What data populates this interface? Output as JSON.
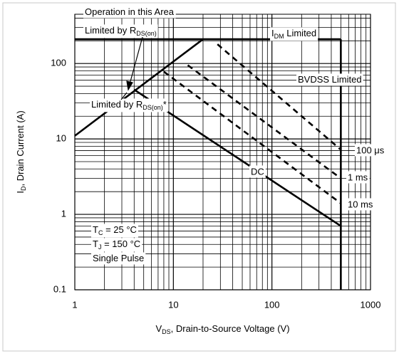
{
  "chart_data": {
    "type": "line",
    "xscale": "log",
    "yscale": "log",
    "xlim": [
      1,
      1000
    ],
    "ylim": [
      0.1,
      450
    ],
    "xticks": [
      1,
      10,
      100,
      1000
    ],
    "yticks": [
      0.1,
      1,
      10,
      100
    ],
    "grid": true,
    "minor_grid": true,
    "xlabel": [
      "V",
      "DS",
      ", Drain-to-Source Voltage (V)"
    ],
    "ylabel": [
      "I",
      "D",
      ", Drain Current (A)"
    ],
    "color": "#000000",
    "series": [
      {
        "style": "solid",
        "x": [
          1,
          20
        ],
        "values": [
          11,
          210
        ]
      },
      {
        "style": "solid",
        "x": [
          1,
          500
        ],
        "values": [
          210,
          210
        ]
      },
      {
        "style": "solid",
        "x": [
          500,
          500
        ],
        "values": [
          210,
          0.1
        ]
      },
      {
        "name": "DC",
        "style": "solid",
        "x": [
          4,
          500
        ],
        "values": [
          45,
          0.7
        ]
      },
      {
        "name": "10 ms",
        "style": "dashed",
        "x": [
          8,
          500
        ],
        "values": [
          78,
          1.4
        ]
      },
      {
        "name": "1 ms",
        "style": "dashed",
        "x": [
          14,
          500
        ],
        "values": [
          95,
          3
        ]
      },
      {
        "name": "100 μs",
        "style": "dashed",
        "x": [
          28,
          500
        ],
        "values": [
          180,
          7.2
        ]
      }
    ],
    "annotations": [
      [
        "Operation in this Area"
      ],
      [
        "Limited by R",
        "DS(on)"
      ],
      [
        "I",
        "DM",
        "  Limited"
      ],
      [
        "BVDSS Limited"
      ],
      [
        "Limited by R",
        "DS(on)",
        "*"
      ],
      [
        "T",
        "C",
        " = 25 °C"
      ],
      [
        "T",
        "J",
        " = 150 °C"
      ],
      [
        "Single Pulse"
      ]
    ]
  }
}
